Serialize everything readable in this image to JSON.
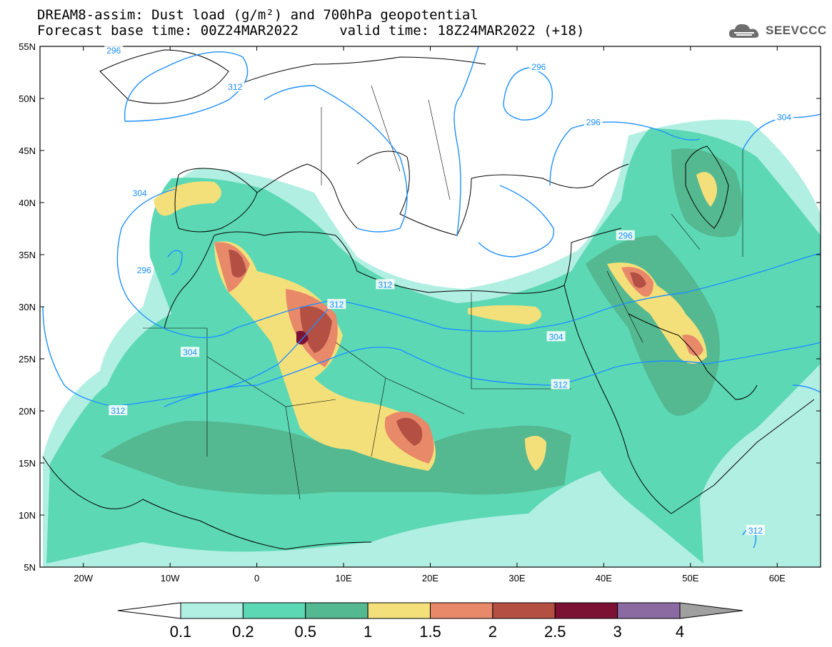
{
  "header": {
    "title_line1": "DREAM8-assim: Dust load (g/m²) and 700hPa geopotential",
    "title_line2": "Forecast base time: 00Z24MAR2022     valid time: 18Z24MAR2022 (+18)",
    "logo_text": "SEEVCCC"
  },
  "map": {
    "lat_labels": [
      "55N",
      "50N",
      "45N",
      "40N",
      "35N",
      "30N",
      "25N",
      "20N",
      "15N",
      "10N",
      "5N"
    ],
    "lon_labels": [
      "20W",
      "10W",
      "0",
      "10E",
      "20E",
      "30E",
      "40E",
      "50E",
      "60E"
    ],
    "contour_labels": [
      {
        "text": "296",
        "lon": -16.5,
        "lat": 54.6
      },
      {
        "text": "312",
        "lon": -2.5,
        "lat": 51.1
      },
      {
        "text": "296",
        "lon": 32.5,
        "lat": 53.0
      },
      {
        "text": "296",
        "lon": 38.8,
        "lat": 47.7
      },
      {
        "text": "304",
        "lon": 60.8,
        "lat": 48.2
      },
      {
        "text": "304",
        "lon": -13.5,
        "lat": 40.9
      },
      {
        "text": "296",
        "lon": -13.0,
        "lat": 33.5
      },
      {
        "text": "312",
        "lon": 14.8,
        "lat": 32.1
      },
      {
        "text": "296",
        "lon": 42.5,
        "lat": 36.8
      },
      {
        "text": "312",
        "lon": 9.2,
        "lat": 30.2
      },
      {
        "text": "304",
        "lon": -7.7,
        "lat": 25.6
      },
      {
        "text": "304",
        "lon": 34.5,
        "lat": 27.1
      },
      {
        "text": "312",
        "lon": -16.0,
        "lat": 20.0
      },
      {
        "text": "312",
        "lon": 35.0,
        "lat": 22.5
      },
      {
        "text": "312",
        "lon": 57.5,
        "lat": 8.5
      }
    ]
  },
  "legend": {
    "ticks": [
      "0.1",
      "0.2",
      "0.5",
      "1",
      "1.5",
      "2",
      "2.5",
      "3",
      "4"
    ],
    "colors": [
      "#ffffff",
      "#b2efe3",
      "#5dd8b4",
      "#54b890",
      "#f4e07a",
      "#e8896a",
      "#b44f44",
      "#7b1234",
      "#8a6aa1",
      "#a0a0a0"
    ]
  },
  "colors": {
    "contour": "#1e90ff",
    "coast": "#000000",
    "dust_light": "#b2efe3",
    "dust_low": "#5dd8b4",
    "dust_mid": "#54b890",
    "dust_yellow": "#f4e07a",
    "dust_orange": "#e8896a",
    "dust_brown": "#b44f44",
    "dust_dark": "#7b1234"
  }
}
